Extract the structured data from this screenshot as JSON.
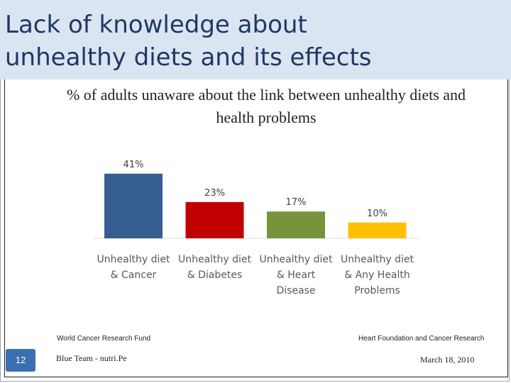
{
  "slide": {
    "title_line1": "Lack of knowledge about",
    "title_line2": "unhealthy diets and its effects",
    "number": "12"
  },
  "footer": {
    "left_source": "World Cancer Research Fund",
    "right_source": "Heart Foundation and Cancer Research",
    "team": "Blue Team - nutri.Pe",
    "date": "March 18, 2010"
  },
  "chart_data": {
    "type": "bar",
    "title": "% of adults unaware about the link between unhealthy diets and health problems",
    "categories": [
      [
        "Unhealthy diet",
        "& Cancer"
      ],
      [
        "Unhealthy diet",
        "& Diabetes"
      ],
      [
        "Unhealthy diet",
        "& Heart",
        "Disease"
      ],
      [
        "Unhealthy diet",
        "& Any Health",
        "Problems"
      ]
    ],
    "values": [
      41,
      23,
      17,
      10
    ],
    "data_labels": [
      "41%",
      "23%",
      "17%",
      "10%"
    ],
    "colors": [
      "#365f91",
      "#c00000",
      "#77933c",
      "#ffc000"
    ],
    "ylim": [
      0,
      45
    ],
    "grid": false,
    "legend": "none"
  }
}
